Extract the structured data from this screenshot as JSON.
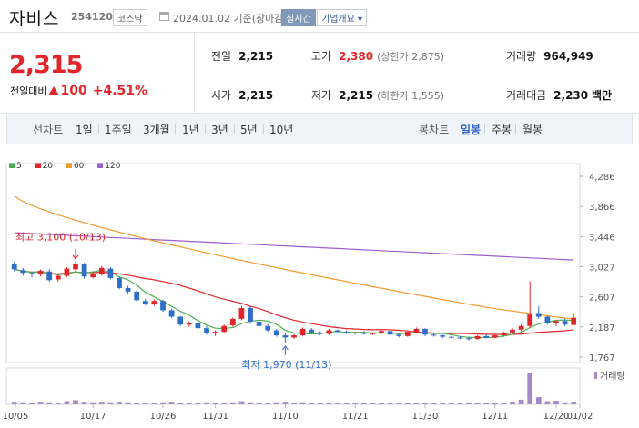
{
  "header": {
    "name": "자비스",
    "code": "254120",
    "market": "코스닥",
    "date": "2024.01.02",
    "basis": "기준(장마감)",
    "realtime": "실시간",
    "overview": "기업개요 ▾"
  },
  "quote": {
    "price": "2,315",
    "change_label": "전일대비",
    "change": "100",
    "change_pct": "+4.51%",
    "prev_close_label": "전일",
    "prev_close": "2,215",
    "high_label": "고가",
    "high": "2,380",
    "upper_limit": "(상한가 2,875)",
    "volume_label": "거래량",
    "volume": "964,949",
    "open_label": "시가",
    "open": "2,215",
    "low_label": "저가",
    "low": "2,215",
    "lower_limit": "(하한가 1,555)",
    "amount_label": "거래대금",
    "amount": "2,230",
    "amount_unit": "백만"
  },
  "tabs": {
    "line_label": "선차트",
    "line": [
      "1일",
      "1주일",
      "3개월",
      "1년",
      "3년",
      "5년",
      "10년"
    ],
    "candle_label": "봉차트",
    "candle": [
      "일봉",
      "주봉",
      "월봉"
    ],
    "active_candle": "일봉"
  },
  "chart_data": {
    "type": "candlestick",
    "ma_legend": [
      {
        "name": "5",
        "color": "#4caf50"
      },
      {
        "name": "20",
        "color": "#e0262b"
      },
      {
        "name": "60",
        "color": "#f39a2e"
      },
      {
        "name": "120",
        "color": "#9d5fd2"
      }
    ],
    "y_ticks": [
      "4,286",
      "3,866",
      "3,446",
      "3,027",
      "2,607",
      "2,187",
      "1,767"
    ],
    "y_range": [
      1767,
      4286
    ],
    "x_ticks": [
      "10/05",
      "10/17",
      "10/26",
      "11/01",
      "11/10",
      "11/21",
      "11/30",
      "12/11",
      "12/20",
      "01/02"
    ],
    "annot_high": "최고 3,100 (10/13)",
    "annot_low": "최저 1,970 (11/13)",
    "volume_label": "거래량",
    "candles": [
      [
        3060,
        3100,
        2960,
        2990
      ],
      [
        2980,
        3010,
        2900,
        2940
      ],
      [
        2940,
        2960,
        2880,
        2920
      ],
      [
        2920,
        2990,
        2890,
        2970
      ],
      [
        2960,
        2990,
        2820,
        2840
      ],
      [
        2850,
        2920,
        2820,
        2900
      ],
      [
        2900,
        3020,
        2880,
        3000
      ],
      [
        2990,
        3100,
        2960,
        3060
      ],
      [
        3060,
        3080,
        2860,
        2890
      ],
      [
        2880,
        2950,
        2860,
        2930
      ],
      [
        2930,
        3040,
        2900,
        3010
      ],
      [
        3000,
        3020,
        2850,
        2870
      ],
      [
        2870,
        2880,
        2710,
        2730
      ],
      [
        2730,
        2760,
        2650,
        2680
      ],
      [
        2680,
        2700,
        2540,
        2560
      ],
      [
        2550,
        2580,
        2490,
        2510
      ],
      [
        2510,
        2570,
        2480,
        2550
      ],
      [
        2550,
        2570,
        2400,
        2420
      ],
      [
        2420,
        2440,
        2310,
        2330
      ],
      [
        2330,
        2340,
        2200,
        2220
      ],
      [
        2220,
        2260,
        2190,
        2240
      ],
      [
        2240,
        2260,
        2150,
        2170
      ],
      [
        2170,
        2200,
        2080,
        2100
      ],
      [
        2100,
        2140,
        2060,
        2120
      ],
      [
        2120,
        2220,
        2110,
        2200
      ],
      [
        2210,
        2320,
        2190,
        2300
      ],
      [
        2300,
        2480,
        2280,
        2450
      ],
      [
        2450,
        2480,
        2230,
        2260
      ],
      [
        2260,
        2290,
        2180,
        2200
      ],
      [
        2200,
        2230,
        2120,
        2140
      ],
      [
        2140,
        2160,
        2050,
        2070
      ],
      [
        2070,
        2100,
        1970,
        2040
      ],
      [
        2040,
        2090,
        2020,
        2070
      ],
      [
        2070,
        2180,
        2060,
        2160
      ],
      [
        2150,
        2170,
        2090,
        2110
      ],
      [
        2110,
        2130,
        2070,
        2090
      ],
      [
        2090,
        2160,
        2080,
        2140
      ],
      [
        2140,
        2150,
        2100,
        2120
      ],
      [
        2120,
        2140,
        2090,
        2100
      ],
      [
        2100,
        2120,
        2080,
        2110
      ],
      [
        2110,
        2130,
        2080,
        2090
      ],
      [
        2090,
        2110,
        2070,
        2100
      ],
      [
        2100,
        2150,
        2090,
        2130
      ],
      [
        2130,
        2140,
        2070,
        2080
      ],
      [
        2080,
        2090,
        2040,
        2060
      ],
      [
        2060,
        2130,
        2050,
        2120
      ],
      [
        2110,
        2180,
        2100,
        2160
      ],
      [
        2160,
        2170,
        2060,
        2080
      ],
      [
        2080,
        2100,
        2050,
        2070
      ],
      [
        2070,
        2080,
        2030,
        2050
      ],
      [
        2050,
        2070,
        2020,
        2040
      ],
      [
        2040,
        2060,
        2020,
        2030
      ],
      [
        2030,
        2050,
        2000,
        2020
      ],
      [
        2020,
        2070,
        2010,
        2060
      ],
      [
        2060,
        2080,
        2030,
        2040
      ],
      [
        2040,
        2080,
        2030,
        2070
      ],
      [
        2070,
        2120,
        2050,
        2110
      ],
      [
        2110,
        2170,
        2090,
        2150
      ],
      [
        2150,
        2220,
        2130,
        2200
      ],
      [
        2200,
        2820,
        2180,
        2360
      ],
      [
        2380,
        2480,
        2300,
        2330
      ],
      [
        2330,
        2340,
        2220,
        2240
      ],
      [
        2240,
        2280,
        2200,
        2270
      ],
      [
        2270,
        2300,
        2200,
        2220
      ],
      [
        2215,
        2380,
        2215,
        2315
      ]
    ],
    "volumes": [
      5,
      4,
      3,
      5,
      4,
      3,
      6,
      8,
      5,
      4,
      5,
      4,
      5,
      4,
      3,
      3,
      3,
      4,
      5,
      3,
      2,
      3,
      4,
      3,
      3,
      4,
      6,
      4,
      3,
      3,
      4,
      5,
      3,
      4,
      3,
      2,
      3,
      2,
      2,
      2,
      2,
      2,
      3,
      2,
      2,
      3,
      3,
      2,
      2,
      2,
      2,
      2,
      2,
      2,
      2,
      2,
      3,
      5,
      9,
      60,
      14,
      6,
      7,
      4,
      5
    ]
  }
}
